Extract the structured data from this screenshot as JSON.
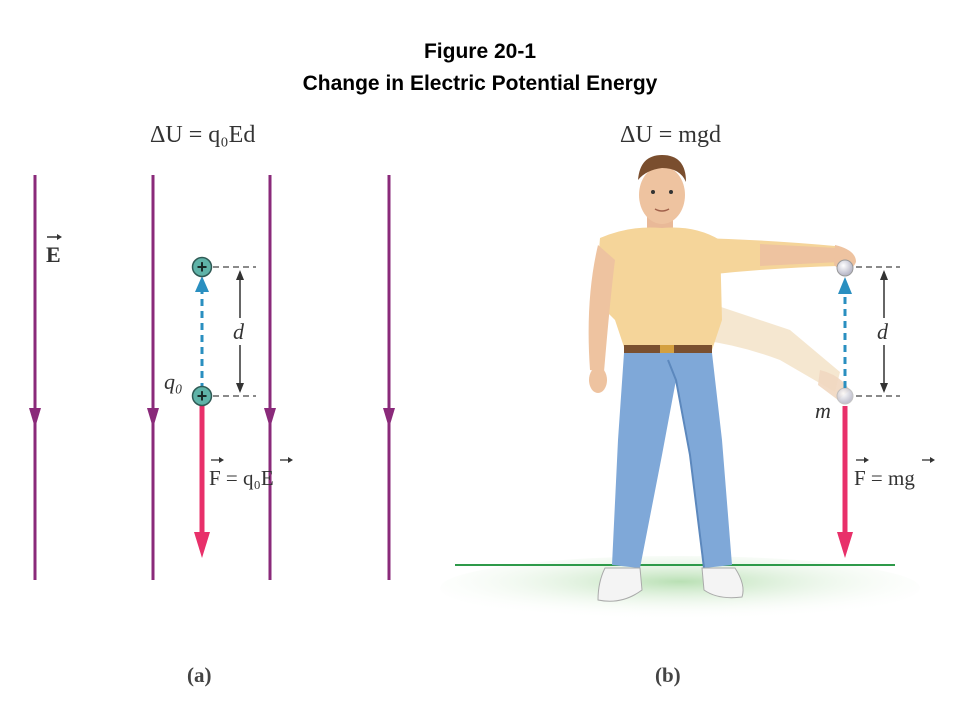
{
  "figure": {
    "title_line1": "Figure 20-1",
    "title_line2": "Change in Electric Potential Energy"
  },
  "panel_a": {
    "equation": "ΔU = q₀Ed",
    "field_label": "E",
    "charge_symbol": "+",
    "charge_label": "q₀",
    "distance_label": "d",
    "force_label": "F = q₀E",
    "caption": "(a)"
  },
  "panel_b": {
    "equation": "ΔU = mgd",
    "mass_label": "m",
    "distance_label": "d",
    "force_label": "F = mg",
    "caption": "(b)"
  },
  "colors": {
    "field_line": "#8a2a7a",
    "force_arrow": "#e8306a",
    "displacement_arrow": "#2a8fc0",
    "charge_fill": "#5fb3a8",
    "ground_line": "#2e9a4a",
    "ground_fill": "#cfe8c8",
    "shirt": "#f5d59a",
    "jeans": "#7fa8d8",
    "skin": "#eec3a0"
  },
  "icons": {
    "person": "person-holding-ball-icon",
    "ball": "ball-icon"
  }
}
